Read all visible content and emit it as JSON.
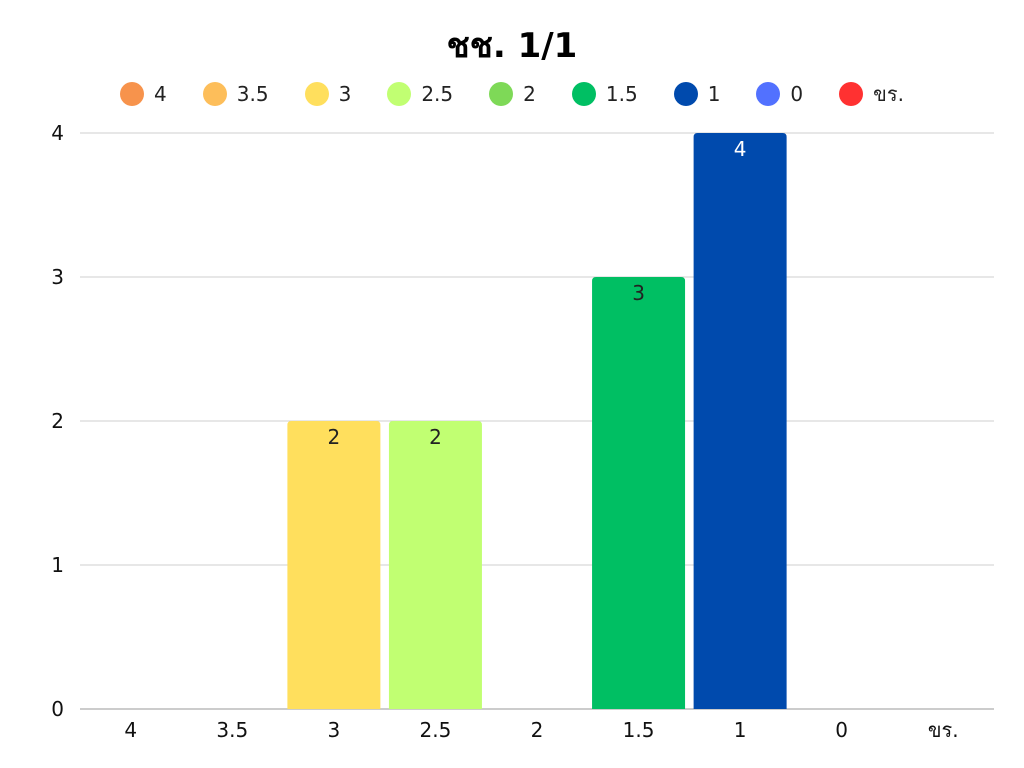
{
  "chart_data": {
    "type": "bar",
    "title": "ชช. 1/1",
    "categories": [
      "4",
      "3.5",
      "3",
      "2.5",
      "2",
      "1.5",
      "1",
      "0",
      "ขร."
    ],
    "values": [
      0,
      0,
      2,
      2,
      0,
      3,
      4,
      0,
      0
    ],
    "colors": [
      "#F7934C",
      "#FDBE5A",
      "#FFDF5D",
      "#C1FF72",
      "#7ED957",
      "#00BF63",
      "#004AAD",
      "#5271FF",
      "#FF3131"
    ],
    "label_colors": [
      "#222222",
      "#222222",
      "#222222",
      "#222222",
      "#222222",
      "#222222",
      "#ffffff",
      "#222222",
      "#222222"
    ],
    "legend": [
      "4",
      "3.5",
      "3",
      "2.5",
      "2",
      "1.5",
      "1",
      "0",
      "ขร."
    ],
    "legend_position": "top-center",
    "ylim": [
      0,
      4
    ],
    "yticks": [
      "0",
      "1",
      "2",
      "3",
      "4"
    ],
    "grid": true,
    "xlabel": "",
    "ylabel": ""
  }
}
